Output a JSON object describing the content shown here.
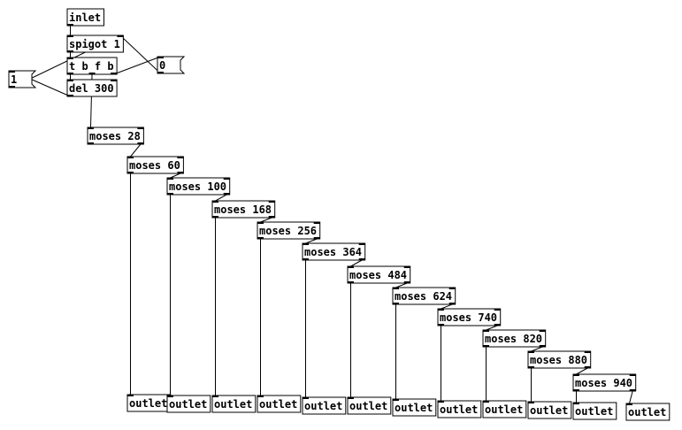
{
  "nodes": [
    {
      "label": "inlet"
    },
    {
      "label": "spigot 1"
    },
    {
      "label": "t b f b"
    },
    {
      "label": "del 300"
    },
    {
      "label": "1"
    },
    {
      "label": "0"
    },
    {
      "label": "moses 28"
    },
    {
      "label": "moses 60"
    },
    {
      "label": "moses 100"
    },
    {
      "label": "moses 168"
    },
    {
      "label": "moses 256"
    },
    {
      "label": "moses 364"
    },
    {
      "label": "moses 484"
    },
    {
      "label": "moses 624"
    },
    {
      "label": "moses 740"
    },
    {
      "label": "moses 820"
    },
    {
      "label": "moses 880"
    },
    {
      "label": "moses 940"
    },
    {
      "label": "outlet"
    },
    {
      "label": "outlet"
    },
    {
      "label": "outlet"
    },
    {
      "label": "outlet"
    },
    {
      "label": "outlet"
    },
    {
      "label": "outlet"
    },
    {
      "label": "outlet"
    },
    {
      "label": "outlet"
    },
    {
      "label": "outlet"
    },
    {
      "label": "outlet"
    },
    {
      "label": "outlet"
    },
    {
      "label": "outlet"
    }
  ]
}
